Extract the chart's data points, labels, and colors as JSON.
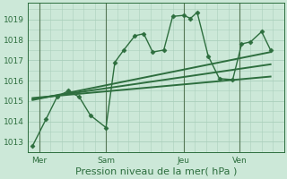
{
  "background_color": "#cce8d8",
  "grid_color": "#aacfbc",
  "line_color_dark": "#2d6e3e",
  "line_color_medium": "#2d6e3e",
  "ylabel": "Pression niveau de la mer( hPa )",
  "ylim": [
    1012.5,
    1019.8
  ],
  "yticks": [
    1013,
    1014,
    1015,
    1016,
    1017,
    1018,
    1019
  ],
  "xtick_labels": [
    "Mer",
    "Sam",
    "Jeu",
    "Ven"
  ],
  "xtick_positions": [
    0.5,
    3.5,
    7.0,
    9.5
  ],
  "xlim": [
    0,
    11.5
  ],
  "series1_x": [
    0.2,
    0.8,
    1.3,
    1.8,
    2.3,
    2.8,
    3.5,
    3.9,
    4.3,
    4.8,
    5.2,
    5.6,
    6.1,
    6.5,
    7.0,
    7.3,
    7.6,
    8.1,
    8.6,
    9.2,
    9.6,
    10.0,
    10.5,
    10.9
  ],
  "series1_y": [
    1012.8,
    1014.1,
    1015.2,
    1015.5,
    1015.2,
    1014.3,
    1013.7,
    1016.9,
    1017.5,
    1018.2,
    1018.3,
    1017.4,
    1017.5,
    1019.15,
    1019.2,
    1019.05,
    1019.35,
    1017.2,
    1016.1,
    1016.05,
    1017.8,
    1017.9,
    1018.4,
    1017.5
  ],
  "trend1_x": [
    0.2,
    10.9
  ],
  "trend1_y": [
    1015.05,
    1017.4
  ],
  "trend2_x": [
    0.2,
    10.9
  ],
  "trend2_y": [
    1015.1,
    1016.8
  ],
  "trend3_x": [
    0.2,
    10.9
  ],
  "trend3_y": [
    1015.15,
    1016.2
  ],
  "vlines_x": [
    0.5,
    3.5,
    7.0,
    9.5
  ],
  "vline_color": "#557755",
  "tick_fontsize": 6.5,
  "xlabel_fontsize": 8
}
